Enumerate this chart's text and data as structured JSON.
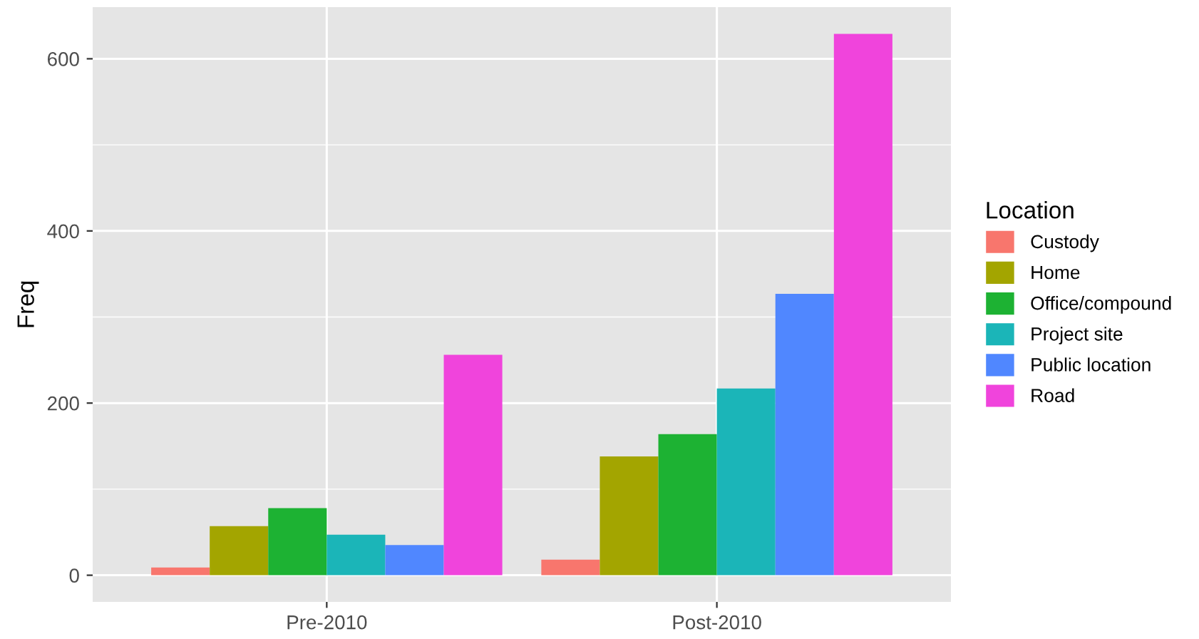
{
  "chart_data": {
    "type": "bar",
    "ylabel": "Freq",
    "legend_title": "Location",
    "categories": [
      "Pre-2010",
      "Post-2010"
    ],
    "series": [
      {
        "name": "Custody",
        "color": "#f8766d",
        "values": [
          9,
          18
        ]
      },
      {
        "name": "Home",
        "color": "#a3a500",
        "values": [
          57,
          138
        ]
      },
      {
        "name": "Office/compound",
        "color": "#1db233",
        "values": [
          78,
          164
        ]
      },
      {
        "name": "Project site",
        "color": "#1bb5b8",
        "values": [
          47,
          217
        ]
      },
      {
        "name": "Public location",
        "color": "#5087ff",
        "values": [
          35,
          327
        ]
      },
      {
        "name": "Road",
        "color": "#f044dc",
        "values": [
          256,
          629
        ]
      }
    ],
    "ylim": [
      -31,
      660
    ],
    "yticks": [
      0,
      200,
      400,
      600
    ],
    "grid": true,
    "legend": "right"
  }
}
